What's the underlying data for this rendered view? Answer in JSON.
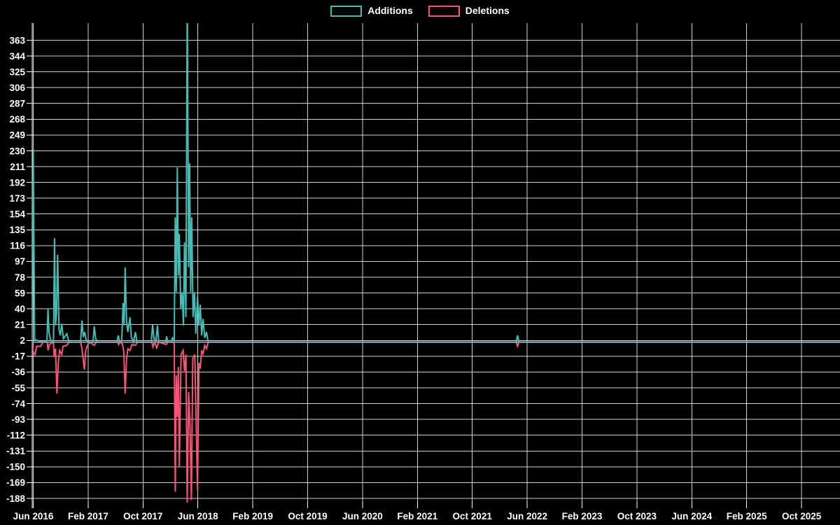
{
  "legend": {
    "items": [
      {
        "label": "Additions"
      },
      {
        "label": "Deletions"
      }
    ]
  },
  "colors": {
    "background": "#000000",
    "grid": "#ffffff",
    "text": "#ffffff",
    "additions": "#46bdb4",
    "deletions": "#fa5276",
    "baseline_overlap": "#8fa4b5"
  },
  "chart_data": {
    "type": "line",
    "title": "",
    "xlabel": "",
    "ylabel": "",
    "legend_position": "top-center",
    "grid": true,
    "x_axis": {
      "tick_labels": [
        "Jun 2016",
        "Feb 2017",
        "Oct 2017",
        "Jun 2018",
        "Feb 2019",
        "Oct 2019",
        "Jun 2020",
        "Feb 2021",
        "Oct 2021",
        "Jun 2022",
        "Feb 2023",
        "Oct 2023",
        "Jun 2024",
        "Feb 2025",
        "Oct 2025"
      ],
      "tick_interval_months": 8
    },
    "y_axis": {
      "tick_min": -188,
      "tick_max": 363,
      "tick_step": 19,
      "tick_labels": [
        363,
        344,
        325,
        306,
        287,
        268,
        249,
        230,
        211,
        192,
        173,
        154,
        135,
        116,
        97,
        78,
        59,
        40,
        21,
        2,
        -17,
        -36,
        -55,
        -74,
        -93,
        -112,
        -131,
        -150,
        -169,
        -188
      ]
    },
    "x_unit": "months since Jun 2016",
    "series": [
      {
        "name": "Additions",
        "color_key": "additions",
        "points": [
          [
            -0.2,
            0
          ],
          [
            0,
            232
          ],
          [
            0.2,
            3
          ],
          [
            1.5,
            0
          ],
          [
            2.0,
            2
          ],
          [
            2.15,
            40
          ],
          [
            2.3,
            12
          ],
          [
            2.5,
            3
          ],
          [
            2.95,
            0
          ],
          [
            3.1,
            125
          ],
          [
            3.25,
            20
          ],
          [
            3.4,
            35
          ],
          [
            3.55,
            105
          ],
          [
            3.75,
            15
          ],
          [
            3.95,
            8
          ],
          [
            4.15,
            22
          ],
          [
            4.4,
            4
          ],
          [
            4.9,
            10
          ],
          [
            5.2,
            0
          ],
          [
            6.9,
            0
          ],
          [
            7.1,
            26
          ],
          [
            7.3,
            6
          ],
          [
            7.5,
            12
          ],
          [
            7.7,
            3
          ],
          [
            8.0,
            0
          ],
          [
            8.7,
            0
          ],
          [
            8.9,
            19
          ],
          [
            9.1,
            4
          ],
          [
            9.4,
            0
          ],
          [
            12.2,
            0
          ],
          [
            12.4,
            8
          ],
          [
            12.6,
            0
          ],
          [
            12.9,
            2
          ],
          [
            13.1,
            47
          ],
          [
            13.25,
            20
          ],
          [
            13.4,
            90
          ],
          [
            13.6,
            25
          ],
          [
            13.8,
            12
          ],
          [
            14.1,
            30
          ],
          [
            14.3,
            6
          ],
          [
            14.6,
            0
          ],
          [
            14.9,
            12
          ],
          [
            15.1,
            0
          ],
          [
            17.2,
            0
          ],
          [
            17.4,
            21
          ],
          [
            17.6,
            4
          ],
          [
            17.9,
            2
          ],
          [
            18.1,
            20
          ],
          [
            18.3,
            0
          ],
          [
            19.3,
            0
          ],
          [
            19.45,
            7
          ],
          [
            19.6,
            0
          ],
          [
            20.1,
            0
          ],
          [
            20.3,
            5
          ],
          [
            20.55,
            2
          ],
          [
            20.7,
            150
          ],
          [
            20.85,
            60
          ],
          [
            21.0,
            210
          ],
          [
            21.15,
            80
          ],
          [
            21.3,
            130
          ],
          [
            21.5,
            40
          ],
          [
            21.7,
            60
          ],
          [
            21.9,
            20
          ],
          [
            22.05,
            120
          ],
          [
            22.25,
            30
          ],
          [
            22.45,
            420
          ],
          [
            22.65,
            90
          ],
          [
            22.8,
            215
          ],
          [
            22.95,
            60
          ],
          [
            23.1,
            150
          ],
          [
            23.3,
            30
          ],
          [
            23.5,
            60
          ],
          [
            23.7,
            10
          ],
          [
            23.95,
            55
          ],
          [
            24.15,
            20
          ],
          [
            24.35,
            45
          ],
          [
            24.55,
            8
          ],
          [
            24.75,
            28
          ],
          [
            25.0,
            5
          ],
          [
            25.25,
            12
          ],
          [
            25.5,
            0
          ],
          [
            70.4,
            0
          ],
          [
            70.6,
            8
          ],
          [
            70.8,
            0
          ],
          [
            117.6,
            0
          ]
        ]
      },
      {
        "name": "Deletions",
        "color_key": "deletions",
        "points": [
          [
            -0.2,
            0
          ],
          [
            0,
            -12
          ],
          [
            0.25,
            -15
          ],
          [
            0.5,
            -5
          ],
          [
            1.1,
            -5
          ],
          [
            1.4,
            0
          ],
          [
            2.05,
            0
          ],
          [
            2.15,
            -10
          ],
          [
            2.35,
            -3
          ],
          [
            2.95,
            0
          ],
          [
            3.05,
            -18
          ],
          [
            3.25,
            -8
          ],
          [
            3.45,
            -62
          ],
          [
            3.65,
            -25
          ],
          [
            3.85,
            -10
          ],
          [
            4.15,
            -15
          ],
          [
            4.35,
            -5
          ],
          [
            4.9,
            -4
          ],
          [
            5.2,
            0
          ],
          [
            6.9,
            0
          ],
          [
            7.1,
            -8
          ],
          [
            7.45,
            -33
          ],
          [
            7.65,
            -10
          ],
          [
            7.95,
            -3
          ],
          [
            8.25,
            0
          ],
          [
            8.9,
            -4
          ],
          [
            9.2,
            0
          ],
          [
            12.3,
            0
          ],
          [
            12.45,
            -3
          ],
          [
            12.6,
            0
          ],
          [
            13.0,
            -2
          ],
          [
            13.2,
            -12
          ],
          [
            13.4,
            -62
          ],
          [
            13.6,
            -20
          ],
          [
            13.8,
            -8
          ],
          [
            14.1,
            -10
          ],
          [
            14.4,
            -3
          ],
          [
            14.9,
            -4
          ],
          [
            15.2,
            0
          ],
          [
            17.3,
            0
          ],
          [
            17.45,
            -6
          ],
          [
            17.7,
            0
          ],
          [
            18.0,
            -7
          ],
          [
            18.3,
            0
          ],
          [
            19.4,
            -3
          ],
          [
            19.6,
            0
          ],
          [
            20.4,
            0
          ],
          [
            20.55,
            -2
          ],
          [
            20.7,
            -180
          ],
          [
            20.85,
            -40
          ],
          [
            21.0,
            -90
          ],
          [
            21.15,
            -30
          ],
          [
            21.3,
            -150
          ],
          [
            21.55,
            -15
          ],
          [
            21.85,
            -10
          ],
          [
            22.05,
            -35
          ],
          [
            22.25,
            -15
          ],
          [
            22.45,
            -193
          ],
          [
            22.65,
            -60
          ],
          [
            22.85,
            -100
          ],
          [
            23.05,
            -190
          ],
          [
            23.25,
            -20
          ],
          [
            23.55,
            -15
          ],
          [
            23.95,
            -178
          ],
          [
            24.15,
            -25
          ],
          [
            24.35,
            -32
          ],
          [
            24.55,
            -10
          ],
          [
            24.75,
            -14
          ],
          [
            25.0,
            -4
          ],
          [
            25.25,
            -8
          ],
          [
            25.5,
            0
          ],
          [
            70.4,
            0
          ],
          [
            70.6,
            -5
          ],
          [
            70.8,
            0
          ],
          [
            117.6,
            0
          ]
        ]
      }
    ]
  }
}
